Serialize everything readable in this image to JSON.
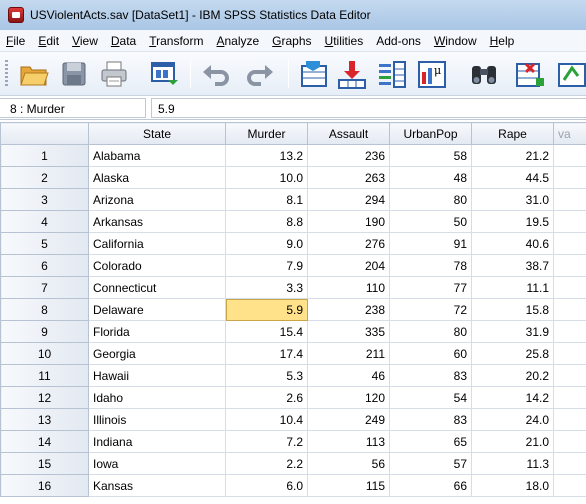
{
  "window": {
    "title": "USViolentActs.sav [DataSet1] - IBM SPSS Statistics Data Editor"
  },
  "menu": [
    {
      "u": "F",
      "rest": "ile"
    },
    {
      "u": "E",
      "rest": "dit"
    },
    {
      "u": "V",
      "rest": "iew"
    },
    {
      "u": "D",
      "rest": "ata"
    },
    {
      "u": "T",
      "rest": "ransform"
    },
    {
      "u": "A",
      "rest": "nalyze"
    },
    {
      "u": "G",
      "rest": "raphs"
    },
    {
      "u": "U",
      "rest": "tilities"
    },
    {
      "u": "",
      "rest": "Add-ons"
    },
    {
      "u": "W",
      "rest": "indow"
    },
    {
      "u": "H",
      "rest": "elp"
    }
  ],
  "toolbar_icons": [
    "open-folder-icon",
    "save-icon",
    "print-icon",
    "dialog-recall-icon",
    "undo-icon",
    "redo-icon",
    "goto-case-icon",
    "goto-variable-icon",
    "variables-icon",
    "run-descriptives-icon",
    "find-icon",
    "insert-cases-icon",
    "split-file-icon"
  ],
  "cellbar": {
    "ref": "8 : Murder",
    "value": "5.9"
  },
  "table": {
    "columns": [
      "State",
      "Murder",
      "Assault",
      "UrbanPop",
      "Rape",
      "va"
    ],
    "rows": [
      {
        "n": "1",
        "state": "Alabama",
        "murder": "13.2",
        "assault": "236",
        "urbanpop": "58",
        "rape": "21.2"
      },
      {
        "n": "2",
        "state": "Alaska",
        "murder": "10.0",
        "assault": "263",
        "urbanpop": "48",
        "rape": "44.5"
      },
      {
        "n": "3",
        "state": "Arizona",
        "murder": "8.1",
        "assault": "294",
        "urbanpop": "80",
        "rape": "31.0"
      },
      {
        "n": "4",
        "state": "Arkansas",
        "murder": "8.8",
        "assault": "190",
        "urbanpop": "50",
        "rape": "19.5"
      },
      {
        "n": "5",
        "state": "California",
        "murder": "9.0",
        "assault": "276",
        "urbanpop": "91",
        "rape": "40.6"
      },
      {
        "n": "6",
        "state": "Colorado",
        "murder": "7.9",
        "assault": "204",
        "urbanpop": "78",
        "rape": "38.7"
      },
      {
        "n": "7",
        "state": "Connecticut",
        "murder": "3.3",
        "assault": "110",
        "urbanpop": "77",
        "rape": "11.1"
      },
      {
        "n": "8",
        "state": "Delaware",
        "murder": "5.9",
        "assault": "238",
        "urbanpop": "72",
        "rape": "15.8"
      },
      {
        "n": "9",
        "state": "Florida",
        "murder": "15.4",
        "assault": "335",
        "urbanpop": "80",
        "rape": "31.9"
      },
      {
        "n": "10",
        "state": "Georgia",
        "murder": "17.4",
        "assault": "211",
        "urbanpop": "60",
        "rape": "25.8"
      },
      {
        "n": "11",
        "state": "Hawaii",
        "murder": "5.3",
        "assault": "46",
        "urbanpop": "83",
        "rape": "20.2"
      },
      {
        "n": "12",
        "state": "Idaho",
        "murder": "2.6",
        "assault": "120",
        "urbanpop": "54",
        "rape": "14.2"
      },
      {
        "n": "13",
        "state": "Illinois",
        "murder": "10.4",
        "assault": "249",
        "urbanpop": "83",
        "rape": "24.0"
      },
      {
        "n": "14",
        "state": "Indiana",
        "murder": "7.2",
        "assault": "113",
        "urbanpop": "65",
        "rape": "21.0"
      },
      {
        "n": "15",
        "state": "Iowa",
        "murder": "2.2",
        "assault": "56",
        "urbanpop": "57",
        "rape": "11.3"
      },
      {
        "n": "16",
        "state": "Kansas",
        "murder": "6.0",
        "assault": "115",
        "urbanpop": "66",
        "rape": "18.0"
      }
    ],
    "selected_row": "8",
    "selected_column": "murder"
  }
}
